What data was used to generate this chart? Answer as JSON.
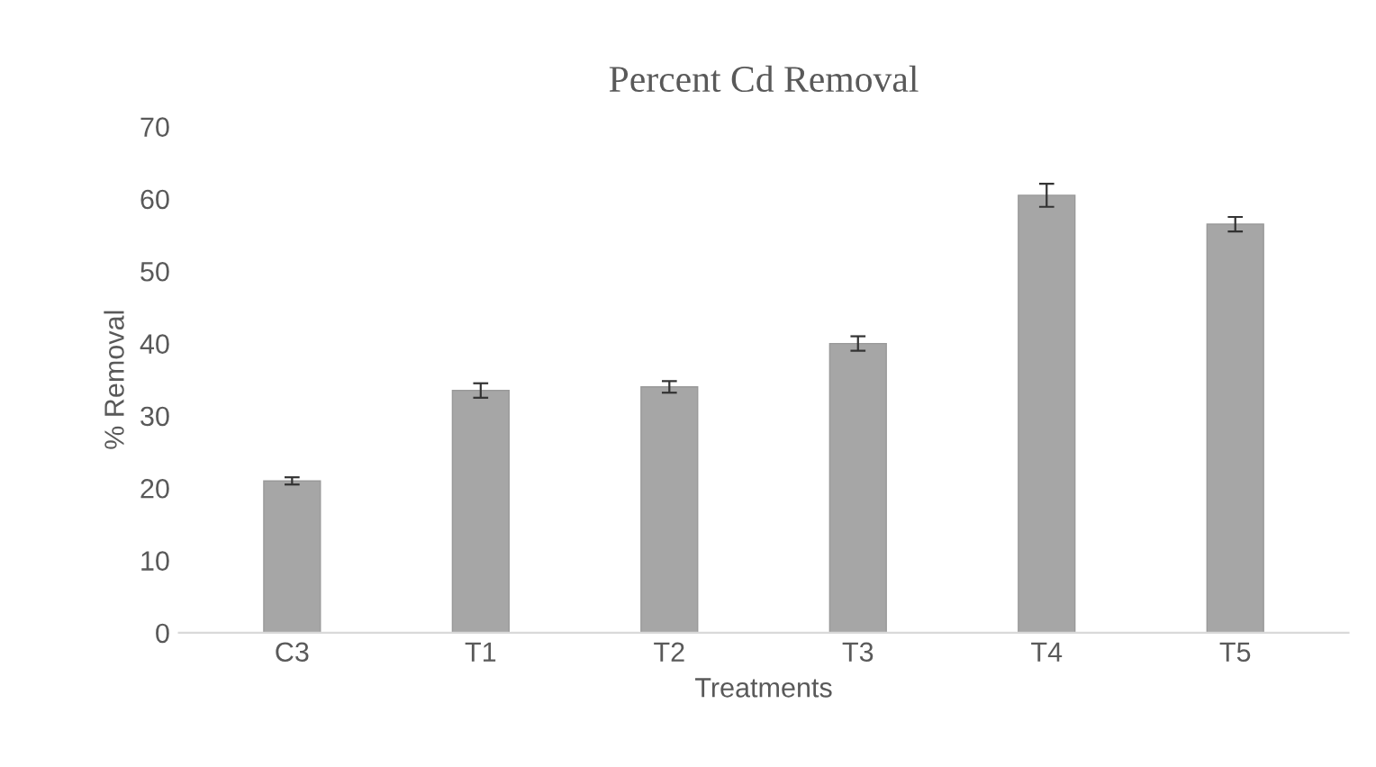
{
  "chart_data": {
    "type": "bar",
    "title": "Percent Cd Removal",
    "xlabel": "Treatments",
    "ylabel": "% Removal",
    "categories": [
      "C3",
      "T1",
      "T2",
      "T3",
      "T4",
      "T5"
    ],
    "values": [
      21,
      33.5,
      34,
      40,
      60.5,
      56.5
    ],
    "errors": [
      0.5,
      1,
      0.8,
      1,
      1.6,
      1
    ],
    "color": "#a6a6a6",
    "ylim": [
      0,
      70
    ],
    "yticks": [
      0,
      10,
      20,
      30,
      40,
      50,
      60,
      70
    ],
    "grid": false,
    "legend": false
  }
}
